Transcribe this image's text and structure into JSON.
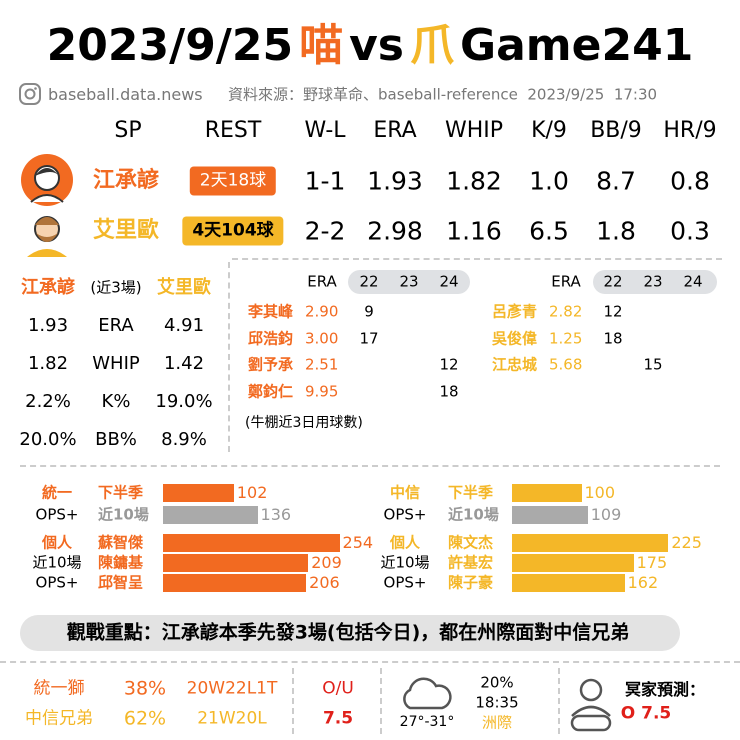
{
  "header": {
    "date": "2023/9/25",
    "team_a": "喵",
    "vs": "vs",
    "team_b": "爪",
    "game": "Game241"
  },
  "source": {
    "account": "baseball.data.news",
    "text": "資料來源：野球革命、baseball-reference  2023/9/25  17:30"
  },
  "starters": {
    "columns": [
      "SP",
      "REST",
      "W-L",
      "ERA",
      "WHIP",
      "K/9",
      "BB/9",
      "HR/9"
    ],
    "rows": [
      {
        "name": "江承諺",
        "rest": "2天18球",
        "stats": [
          "1-1",
          "1.93",
          "1.82",
          "1.0",
          "8.7",
          "0.8"
        ]
      },
      {
        "name": "艾里歐",
        "rest": "4天104球",
        "stats": [
          "2-2",
          "2.98",
          "1.16",
          "6.5",
          "1.8",
          "0.3"
        ]
      }
    ]
  },
  "recent": {
    "left": "江承諺",
    "span": "(近3場)",
    "right": "艾里歐",
    "rows": [
      {
        "left": "1.93",
        "stat": "ERA",
        "right": "4.91"
      },
      {
        "left": "1.82",
        "stat": "WHIP",
        "right": "1.42"
      },
      {
        "left": "2.2%",
        "stat": "K%",
        "right": "19.0%"
      },
      {
        "left": "20.0%",
        "stat": "BB%",
        "right": "8.9%"
      }
    ]
  },
  "bullpen": {
    "teams": [
      {
        "header": [
          "ERA",
          "22",
          "23",
          "24"
        ],
        "rows": [
          {
            "name": "李其峰",
            "era": "2.90",
            "pitches": [
              9,
              null,
              null
            ]
          },
          {
            "name": "邱浩鈞",
            "era": "3.00",
            "pitches": [
              17,
              null,
              null
            ]
          },
          {
            "name": "劉予承",
            "era": "2.51",
            "pitches": [
              null,
              null,
              12
            ]
          },
          {
            "name": "鄭鈞仁",
            "era": "9.95",
            "pitches": [
              null,
              null,
              18
            ]
          }
        ]
      },
      {
        "header": [
          "ERA",
          "22",
          "23",
          "24"
        ],
        "rows": [
          {
            "name": "呂彥青",
            "era": "2.82",
            "pitches": [
              12,
              null,
              null
            ]
          },
          {
            "name": "吳俊偉",
            "era": "1.25",
            "pitches": [
              18,
              null,
              null
            ]
          },
          {
            "name": "江忠城",
            "era": "5.68",
            "pitches": [
              null,
              15,
              null
            ]
          }
        ]
      }
    ],
    "note": "(牛棚近3日用球數)"
  },
  "ops": {
    "teams": [
      {
        "team": "統一",
        "metric": "OPS+",
        "periods": [
          {
            "label": "下半季",
            "value": 102
          },
          {
            "label": "近10場",
            "value": 136
          }
        ],
        "individual": [
          "個人",
          "近10場",
          "OPS+"
        ],
        "players": [
          {
            "name": "蘇智傑",
            "value": 254
          },
          {
            "name": "陳鏞基",
            "value": 209
          },
          {
            "name": "邱智呈",
            "value": 206
          }
        ]
      },
      {
        "team": "中信",
        "metric": "OPS+",
        "periods": [
          {
            "label": "下半季",
            "value": 100
          },
          {
            "label": "近10場",
            "value": 109
          }
        ],
        "individual": [
          "個人",
          "近10場",
          "OPS+"
        ],
        "players": [
          {
            "name": "陳文杰",
            "value": 225
          },
          {
            "name": "許基宏",
            "value": 175
          },
          {
            "name": "陳子豪",
            "value": 162
          }
        ]
      }
    ]
  },
  "focus": "觀戰重點：江承諺本季先發3場(包括今日)，都在州際面對中信兄弟",
  "game": {
    "teams": [
      {
        "name": "統一獅",
        "pct": "38%",
        "record": "20W22L1T"
      },
      {
        "name": "中信兄弟",
        "pct": "62%",
        "record": "21W20L"
      }
    ],
    "ou_label": "O/U",
    "ou": "7.5",
    "temp": "27°-31°",
    "rain": "20%",
    "time": "18:35",
    "venue": "洲際",
    "pick_label": "冥家預測：",
    "pick": "O 7.5"
  }
}
